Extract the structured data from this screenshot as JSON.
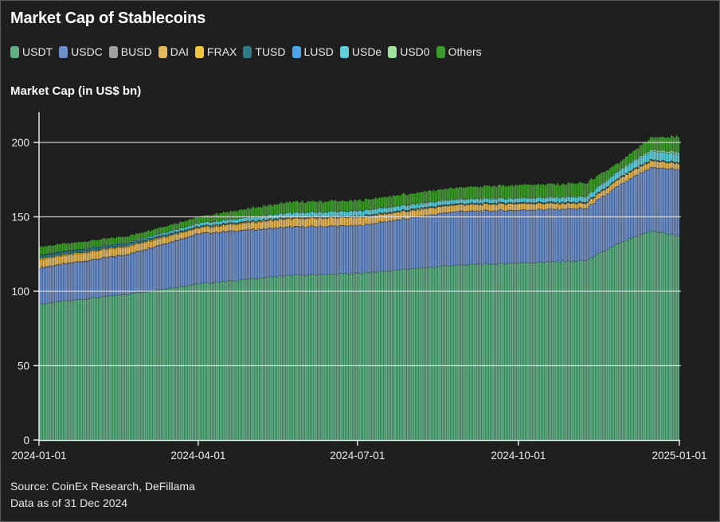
{
  "title": "Market Cap of Stablecoins",
  "legend": [
    {
      "name": "USDT",
      "color": "#5fae84"
    },
    {
      "name": "USDC",
      "color": "#6f8fc8"
    },
    {
      "name": "BUSD",
      "color": "#a0a0a0"
    },
    {
      "name": "DAI",
      "color": "#e6b85c"
    },
    {
      "name": "FRAX",
      "color": "#f2c33c"
    },
    {
      "name": "TUSD",
      "color": "#2f7b86"
    },
    {
      "name": "LUSD",
      "color": "#4aa6e8"
    },
    {
      "name": "USDe",
      "color": "#5fcfdc"
    },
    {
      "name": "USD0",
      "color": "#9ee39e"
    },
    {
      "name": "Others",
      "color": "#3f9a2e"
    }
  ],
  "footer": {
    "source": "Source: CoinEx Research, DeFillama",
    "asof": "Data as of 31 Dec 2024"
  },
  "chart_data": {
    "type": "bar",
    "stacked": true,
    "title": "Market Cap of Stablecoins",
    "xlabel": "",
    "ylabel": "Market Cap (in US$ bn)",
    "ylim": [
      0,
      220
    ],
    "yticks": [
      0,
      50,
      100,
      150,
      200
    ],
    "xlim": [
      "2024-01-01",
      "2025-01-01"
    ],
    "xticks": [
      "2024-01-01",
      "2024-04-01",
      "2024-07-01",
      "2024-10-01",
      "2025-01-01"
    ],
    "grid": "horizontal",
    "legend_position": "top-left",
    "frequency": "daily",
    "x": [
      "2024-01-01",
      "2024-02-20",
      "2024-04-01",
      "2024-05-22",
      "2024-07-01",
      "2024-08-25",
      "2024-10-01",
      "2024-11-08",
      "2024-11-28",
      "2024-12-15",
      "2024-12-31"
    ],
    "series": [
      {
        "name": "USDT",
        "values": [
          91.5,
          98.0,
          105.0,
          110.5,
          112.0,
          117.5,
          119.0,
          120.5,
          132.5,
          140.5,
          137.5
        ]
      },
      {
        "name": "USDC",
        "values": [
          24.0,
          26.5,
          33.5,
          32.5,
          32.0,
          36.0,
          35.5,
          35.0,
          39.0,
          42.5,
          44.5
        ]
      },
      {
        "name": "BUSD",
        "values": [
          0.5,
          0.4,
          0.3,
          0.2,
          0.1,
          0.1,
          0.1,
          0.1,
          0.1,
          0.1,
          0.1
        ]
      },
      {
        "name": "DAI",
        "values": [
          5.3,
          5.0,
          3.5,
          5.3,
          5.3,
          4.3,
          4.3,
          3.3,
          4.3,
          4.3,
          3.8
        ]
      },
      {
        "name": "FRAX",
        "values": [
          0.7,
          0.6,
          0.6,
          0.5,
          0.4,
          0.3,
          0.3,
          0.3,
          0.3,
          0.3,
          0.3
        ]
      },
      {
        "name": "TUSD",
        "values": [
          2.0,
          1.5,
          0.5,
          0.5,
          0.5,
          0.5,
          0.5,
          0.5,
          0.5,
          0.5,
          0.5
        ]
      },
      {
        "name": "LUSD",
        "values": [
          0.3,
          0.3,
          0.3,
          0.1,
          0.1,
          0.1,
          0.1,
          0.1,
          0.1,
          0.1,
          0.1
        ]
      },
      {
        "name": "USDe",
        "values": [
          0.2,
          0.6,
          2.0,
          3.0,
          3.5,
          2.7,
          2.7,
          3.5,
          4.5,
          5.7,
          5.8
        ]
      },
      {
        "name": "USD0",
        "values": [
          0.0,
          0.0,
          0.0,
          0.0,
          0.3,
          0.5,
          0.5,
          0.5,
          0.6,
          1.0,
          1.2
        ]
      },
      {
        "name": "Others",
        "values": [
          5.5,
          4.1,
          4.3,
          7.4,
          6.8,
          7.5,
          8.5,
          8.7,
          5.1,
          8.0,
          10.2
        ]
      }
    ]
  }
}
